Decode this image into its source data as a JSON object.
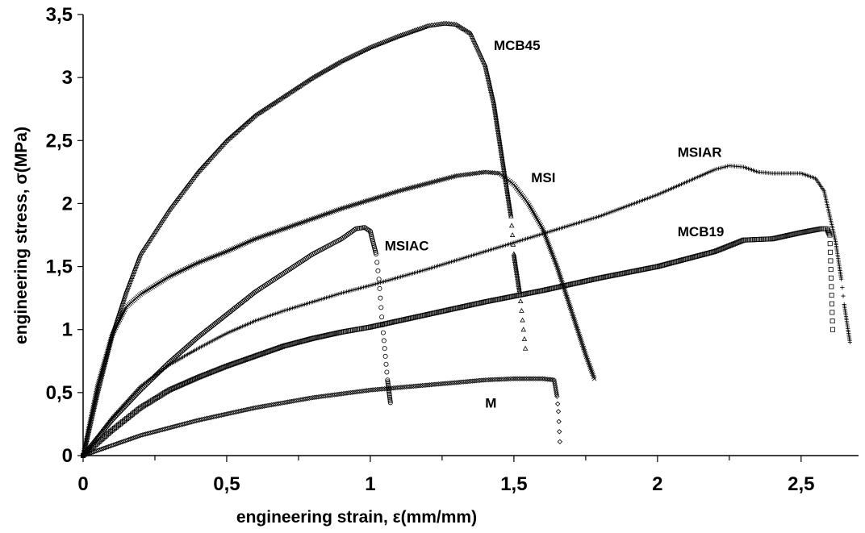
{
  "chart_data": {
    "type": "scatter",
    "title": "",
    "xlabel": "engineering strain, ε(mm/mm)",
    "ylabel": "engineering stress, σ(MPa)",
    "xlim": [
      0,
      2.7
    ],
    "ylim": [
      0,
      3.5
    ],
    "x_ticks": [
      {
        "value": 0,
        "label": "0"
      },
      {
        "value": 0.5,
        "label": "0,5"
      },
      {
        "value": 1,
        "label": "1"
      },
      {
        "value": 1.5,
        "label": "1,5"
      },
      {
        "value": 2,
        "label": "2"
      },
      {
        "value": 2.5,
        "label": "2,5"
      }
    ],
    "y_ticks": [
      {
        "value": 0,
        "label": "0"
      },
      {
        "value": 0.5,
        "label": "0,5"
      },
      {
        "value": 1,
        "label": "1"
      },
      {
        "value": 1.5,
        "label": "1,5"
      },
      {
        "value": 2,
        "label": "2"
      },
      {
        "value": 2.5,
        "label": "2,5"
      },
      {
        "value": 3,
        "label": "3"
      },
      {
        "value": 3.5,
        "label": "3,5"
      }
    ],
    "grid": false,
    "legend": "none",
    "series": [
      {
        "name": "MCB45",
        "marker": "triangle",
        "label_at": [
          1.43,
          3.22
        ],
        "points": [
          [
            0,
            0
          ],
          [
            0.05,
            0.5
          ],
          [
            0.1,
            0.95
          ],
          [
            0.15,
            1.3
          ],
          [
            0.2,
            1.6
          ],
          [
            0.3,
            1.95
          ],
          [
            0.4,
            2.25
          ],
          [
            0.5,
            2.5
          ],
          [
            0.6,
            2.7
          ],
          [
            0.7,
            2.85
          ],
          [
            0.8,
            3.0
          ],
          [
            0.9,
            3.13
          ],
          [
            1.0,
            3.24
          ],
          [
            1.1,
            3.33
          ],
          [
            1.2,
            3.41
          ],
          [
            1.26,
            3.43
          ],
          [
            1.3,
            3.42
          ],
          [
            1.35,
            3.35
          ],
          [
            1.4,
            3.1
          ],
          [
            1.43,
            2.8
          ],
          [
            1.45,
            2.5
          ],
          [
            1.47,
            2.2
          ],
          [
            1.49,
            1.9
          ],
          [
            1.5,
            1.6
          ],
          [
            1.52,
            1.3
          ],
          [
            1.54,
            0.85
          ]
        ]
      },
      {
        "name": "MSI",
        "marker": "x",
        "label_at": [
          1.56,
          2.17
        ],
        "points": [
          [
            0,
            0
          ],
          [
            0.05,
            0.55
          ],
          [
            0.1,
            0.95
          ],
          [
            0.15,
            1.18
          ],
          [
            0.2,
            1.28
          ],
          [
            0.3,
            1.42
          ],
          [
            0.4,
            1.53
          ],
          [
            0.5,
            1.62
          ],
          [
            0.6,
            1.72
          ],
          [
            0.7,
            1.8
          ],
          [
            0.8,
            1.88
          ],
          [
            0.9,
            1.96
          ],
          [
            1.0,
            2.03
          ],
          [
            1.1,
            2.1
          ],
          [
            1.2,
            2.16
          ],
          [
            1.3,
            2.22
          ],
          [
            1.4,
            2.25
          ],
          [
            1.45,
            2.24
          ],
          [
            1.5,
            2.15
          ],
          [
            1.55,
            2.0
          ],
          [
            1.6,
            1.8
          ],
          [
            1.65,
            1.5
          ],
          [
            1.7,
            1.15
          ],
          [
            1.75,
            0.8
          ],
          [
            1.78,
            0.61
          ]
        ]
      },
      {
        "name": "MSIAR",
        "marker": "plus",
        "label_at": [
          2.07,
          2.37
        ],
        "points": [
          [
            0,
            0
          ],
          [
            0.05,
            0.15
          ],
          [
            0.1,
            0.3
          ],
          [
            0.2,
            0.55
          ],
          [
            0.3,
            0.72
          ],
          [
            0.4,
            0.85
          ],
          [
            0.5,
            0.97
          ],
          [
            0.6,
            1.07
          ],
          [
            0.7,
            1.15
          ],
          [
            0.8,
            1.22
          ],
          [
            0.9,
            1.29
          ],
          [
            1.0,
            1.35
          ],
          [
            1.2,
            1.48
          ],
          [
            1.4,
            1.62
          ],
          [
            1.6,
            1.76
          ],
          [
            1.8,
            1.9
          ],
          [
            2.0,
            2.07
          ],
          [
            2.1,
            2.17
          ],
          [
            2.2,
            2.27
          ],
          [
            2.25,
            2.3
          ],
          [
            2.3,
            2.29
          ],
          [
            2.35,
            2.25
          ],
          [
            2.4,
            2.24
          ],
          [
            2.45,
            2.24
          ],
          [
            2.5,
            2.24
          ],
          [
            2.55,
            2.2
          ],
          [
            2.58,
            2.1
          ],
          [
            2.6,
            1.9
          ],
          [
            2.62,
            1.7
          ],
          [
            2.64,
            1.4
          ],
          [
            2.65,
            1.2
          ],
          [
            2.67,
            0.9
          ]
        ]
      },
      {
        "name": "MCB19",
        "marker": "square",
        "label_at": [
          2.07,
          1.74
        ],
        "points": [
          [
            0,
            0
          ],
          [
            0.05,
            0.1
          ],
          [
            0.1,
            0.2
          ],
          [
            0.2,
            0.38
          ],
          [
            0.3,
            0.52
          ],
          [
            0.4,
            0.62
          ],
          [
            0.5,
            0.71
          ],
          [
            0.6,
            0.79
          ],
          [
            0.7,
            0.87
          ],
          [
            0.8,
            0.93
          ],
          [
            0.9,
            0.98
          ],
          [
            1.0,
            1.02
          ],
          [
            1.2,
            1.12
          ],
          [
            1.4,
            1.22
          ],
          [
            1.6,
            1.31
          ],
          [
            1.8,
            1.41
          ],
          [
            2.0,
            1.5
          ],
          [
            2.2,
            1.62
          ],
          [
            2.3,
            1.71
          ],
          [
            2.4,
            1.72
          ],
          [
            2.5,
            1.77
          ],
          [
            2.57,
            1.8
          ],
          [
            2.59,
            1.8
          ],
          [
            2.6,
            1.75
          ],
          [
            2.61,
            1.0
          ]
        ]
      },
      {
        "name": "MSIAC",
        "marker": "circle",
        "label_at": [
          1.05,
          1.63
        ],
        "points": [
          [
            0,
            0
          ],
          [
            0.05,
            0.14
          ],
          [
            0.1,
            0.28
          ],
          [
            0.15,
            0.4
          ],
          [
            0.2,
            0.52
          ],
          [
            0.3,
            0.74
          ],
          [
            0.4,
            0.94
          ],
          [
            0.5,
            1.12
          ],
          [
            0.6,
            1.3
          ],
          [
            0.7,
            1.45
          ],
          [
            0.8,
            1.6
          ],
          [
            0.9,
            1.72
          ],
          [
            0.95,
            1.8
          ],
          [
            0.98,
            1.81
          ],
          [
            1.0,
            1.78
          ],
          [
            1.02,
            1.6
          ],
          [
            1.03,
            1.4
          ],
          [
            1.04,
            1.1
          ],
          [
            1.05,
            0.85
          ],
          [
            1.06,
            0.6
          ],
          [
            1.07,
            0.42
          ]
        ]
      },
      {
        "name": "M",
        "marker": "diamond",
        "label_at": [
          1.4,
          0.38
        ],
        "points": [
          [
            0,
            0
          ],
          [
            0.1,
            0.08
          ],
          [
            0.2,
            0.16
          ],
          [
            0.3,
            0.22
          ],
          [
            0.4,
            0.28
          ],
          [
            0.5,
            0.33
          ],
          [
            0.6,
            0.38
          ],
          [
            0.7,
            0.42
          ],
          [
            0.8,
            0.46
          ],
          [
            0.9,
            0.49
          ],
          [
            1.0,
            0.52
          ],
          [
            1.1,
            0.54
          ],
          [
            1.2,
            0.56
          ],
          [
            1.3,
            0.58
          ],
          [
            1.4,
            0.6
          ],
          [
            1.5,
            0.61
          ],
          [
            1.6,
            0.61
          ],
          [
            1.64,
            0.6
          ],
          [
            1.65,
            0.47
          ],
          [
            1.655,
            0.35
          ],
          [
            1.66,
            0.11
          ]
        ]
      }
    ]
  }
}
